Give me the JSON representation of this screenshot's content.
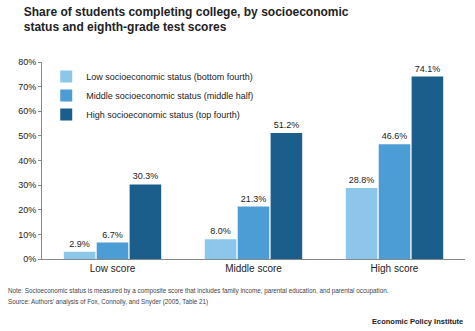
{
  "chart_data": {
    "type": "bar",
    "title": "Share of students completing college, by socioeconomic status and eighth-grade test scores",
    "categories": [
      "Low score",
      "Middle score",
      "High score"
    ],
    "series": [
      {
        "name": "Low socioeconomic status (bottom fourth)",
        "color": "#8cc6ea",
        "values": [
          2.9,
          8.0,
          28.8
        ],
        "value_labels": [
          "2.9%",
          "8.0%",
          "28.8%"
        ]
      },
      {
        "name": "Middle socioeconomic status (middle half)",
        "color": "#4c9cd6",
        "values": [
          6.7,
          21.3,
          46.6
        ],
        "value_labels": [
          "6.7%",
          "21.3%",
          "46.6%"
        ]
      },
      {
        "name": "High socioeconomic status (top fourth)",
        "color": "#1b5e8c",
        "values": [
          30.3,
          51.2,
          74.1
        ],
        "value_labels": [
          "30.3%",
          "51.2%",
          "74.1%"
        ]
      }
    ],
    "ylim": [
      0,
      80
    ],
    "yticks": [
      {
        "value": 0,
        "label": "0%"
      },
      {
        "value": 10,
        "label": "10%"
      },
      {
        "value": 20,
        "label": "20%"
      },
      {
        "value": 30,
        "label": "30%"
      },
      {
        "value": 40,
        "label": "40%"
      },
      {
        "value": 50,
        "label": "50%"
      },
      {
        "value": 60,
        "label": "60%"
      },
      {
        "value": 70,
        "label": "70%"
      },
      {
        "value": 80,
        "label": "80%"
      }
    ],
    "grid": false,
    "legend": "top-left",
    "data_labels": true,
    "annotations": [
      "Note: Socioeconomic status is measured by a composite score that includes family income, parental education, and parental occupation.",
      "Source: Authors' analysis of Fox, Connolly, and Snyder (2005, Table 21)",
      "Economic Policy Institute"
    ]
  }
}
